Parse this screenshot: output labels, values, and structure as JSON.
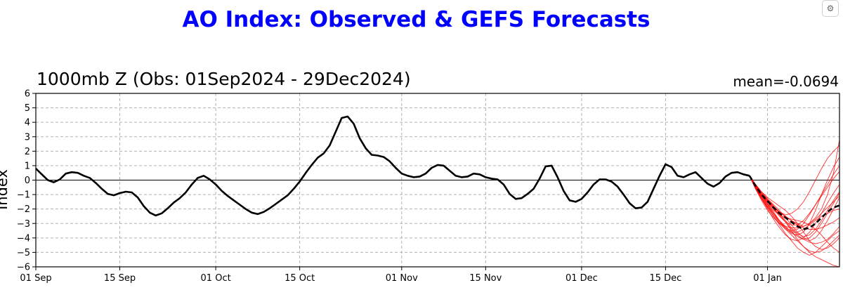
{
  "title": "AO Index: Observed & GEFS Forecasts",
  "subtitle": "1000mb Z (Obs: 01Sep2024 - 29Dec2024)",
  "mean_label": "mean=-0.0694",
  "ylabel": "Index",
  "icon": "settings-icon",
  "colors": {
    "title": "#0000ff",
    "observed": "#000000",
    "members": "#ff0000",
    "ensemble_mean": "#000000",
    "grid": "#b0b0b0"
  },
  "chart_data": {
    "type": "line",
    "title": "AO Index: Observed & GEFS Forecasts",
    "subtitle": "1000mb Z (Obs: 01Sep2024 - 29Dec2024)",
    "xlabel": "",
    "ylabel": "Index",
    "ylim": [
      -6,
      6
    ],
    "xlim": [
      "2024-09-01",
      "2025-01-13"
    ],
    "grid": true,
    "yticks": [
      -6,
      -5,
      -4,
      -3,
      -2,
      -1,
      0,
      1,
      2,
      3,
      4,
      5,
      6
    ],
    "xticks": [
      {
        "date": "2024-09-01",
        "label": "01 Sep"
      },
      {
        "date": "2024-09-15",
        "label": "15 Sep"
      },
      {
        "date": "2024-10-01",
        "label": "01 Oct"
      },
      {
        "date": "2024-10-15",
        "label": "15 Oct"
      },
      {
        "date": "2024-11-01",
        "label": "01 Nov"
      },
      {
        "date": "2024-11-15",
        "label": "15 Nov"
      },
      {
        "date": "2024-12-01",
        "label": "01 Dec"
      },
      {
        "date": "2024-12-15",
        "label": "15 Dec"
      },
      {
        "date": "2025-01-01",
        "label": "01 Jan"
      }
    ],
    "observed": [
      [
        "2024-09-01",
        0.8
      ],
      [
        "2024-09-02",
        0.4
      ],
      [
        "2024-09-03",
        0.0
      ],
      [
        "2024-09-04",
        -0.15
      ],
      [
        "2024-09-05",
        0.05
      ],
      [
        "2024-09-06",
        0.45
      ],
      [
        "2024-09-07",
        0.55
      ],
      [
        "2024-09-08",
        0.5
      ],
      [
        "2024-09-09",
        0.3
      ],
      [
        "2024-09-10",
        0.15
      ],
      [
        "2024-09-11",
        -0.2
      ],
      [
        "2024-09-12",
        -0.6
      ],
      [
        "2024-09-13",
        -0.95
      ],
      [
        "2024-09-14",
        -1.05
      ],
      [
        "2024-09-15",
        -0.9
      ],
      [
        "2024-09-16",
        -0.8
      ],
      [
        "2024-09-17",
        -0.85
      ],
      [
        "2024-09-18",
        -1.2
      ],
      [
        "2024-09-19",
        -1.8
      ],
      [
        "2024-09-20",
        -2.25
      ],
      [
        "2024-09-21",
        -2.45
      ],
      [
        "2024-09-22",
        -2.3
      ],
      [
        "2024-09-23",
        -1.95
      ],
      [
        "2024-09-24",
        -1.55
      ],
      [
        "2024-09-25",
        -1.25
      ],
      [
        "2024-09-26",
        -0.85
      ],
      [
        "2024-09-27",
        -0.3
      ],
      [
        "2024-09-28",
        0.15
      ],
      [
        "2024-09-29",
        0.3
      ],
      [
        "2024-09-30",
        0.05
      ],
      [
        "2024-10-01",
        -0.3
      ],
      [
        "2024-10-02",
        -0.75
      ],
      [
        "2024-10-03",
        -1.1
      ],
      [
        "2024-10-04",
        -1.4
      ],
      [
        "2024-10-05",
        -1.7
      ],
      [
        "2024-10-06",
        -2.0
      ],
      [
        "2024-10-07",
        -2.25
      ],
      [
        "2024-10-08",
        -2.35
      ],
      [
        "2024-10-09",
        -2.2
      ],
      [
        "2024-10-10",
        -1.95
      ],
      [
        "2024-10-11",
        -1.65
      ],
      [
        "2024-10-12",
        -1.35
      ],
      [
        "2024-10-13",
        -1.05
      ],
      [
        "2024-10-14",
        -0.6
      ],
      [
        "2024-10-15",
        -0.1
      ],
      [
        "2024-10-16",
        0.5
      ],
      [
        "2024-10-17",
        1.05
      ],
      [
        "2024-10-18",
        1.55
      ],
      [
        "2024-10-19",
        1.85
      ],
      [
        "2024-10-20",
        2.4
      ],
      [
        "2024-10-21",
        3.35
      ],
      [
        "2024-10-22",
        4.3
      ],
      [
        "2024-10-23",
        4.4
      ],
      [
        "2024-10-24",
        3.9
      ],
      [
        "2024-10-25",
        2.9
      ],
      [
        "2024-10-26",
        2.2
      ],
      [
        "2024-10-27",
        1.75
      ],
      [
        "2024-10-28",
        1.7
      ],
      [
        "2024-10-29",
        1.6
      ],
      [
        "2024-10-30",
        1.3
      ],
      [
        "2024-10-31",
        0.85
      ],
      [
        "2024-11-01",
        0.45
      ],
      [
        "2024-11-02",
        0.3
      ],
      [
        "2024-11-03",
        0.2
      ],
      [
        "2024-11-04",
        0.25
      ],
      [
        "2024-11-05",
        0.45
      ],
      [
        "2024-11-06",
        0.85
      ],
      [
        "2024-11-07",
        1.05
      ],
      [
        "2024-11-08",
        1.0
      ],
      [
        "2024-11-09",
        0.65
      ],
      [
        "2024-11-10",
        0.3
      ],
      [
        "2024-11-11",
        0.2
      ],
      [
        "2024-11-12",
        0.25
      ],
      [
        "2024-11-13",
        0.45
      ],
      [
        "2024-11-14",
        0.4
      ],
      [
        "2024-11-15",
        0.2
      ],
      [
        "2024-11-16",
        0.1
      ],
      [
        "2024-11-17",
        0.05
      ],
      [
        "2024-11-18",
        -0.3
      ],
      [
        "2024-11-19",
        -0.95
      ],
      [
        "2024-11-20",
        -1.3
      ],
      [
        "2024-11-21",
        -1.25
      ],
      [
        "2024-11-22",
        -0.95
      ],
      [
        "2024-11-23",
        -0.6
      ],
      [
        "2024-11-24",
        0.1
      ],
      [
        "2024-11-25",
        0.95
      ],
      [
        "2024-11-26",
        1.0
      ],
      [
        "2024-11-27",
        0.2
      ],
      [
        "2024-11-28",
        -0.75
      ],
      [
        "2024-11-29",
        -1.4
      ],
      [
        "2024-11-30",
        -1.5
      ],
      [
        "2024-12-01",
        -1.3
      ],
      [
        "2024-12-02",
        -0.85
      ],
      [
        "2024-12-03",
        -0.3
      ],
      [
        "2024-12-04",
        0.05
      ],
      [
        "2024-12-05",
        0.05
      ],
      [
        "2024-12-06",
        -0.1
      ],
      [
        "2024-12-07",
        -0.45
      ],
      [
        "2024-12-08",
        -1.0
      ],
      [
        "2024-12-09",
        -1.6
      ],
      [
        "2024-12-10",
        -1.95
      ],
      [
        "2024-12-11",
        -1.9
      ],
      [
        "2024-12-12",
        -1.5
      ],
      [
        "2024-12-13",
        -0.6
      ],
      [
        "2024-12-14",
        0.3
      ],
      [
        "2024-12-15",
        1.1
      ],
      [
        "2024-12-16",
        0.9
      ],
      [
        "2024-12-17",
        0.3
      ],
      [
        "2024-12-18",
        0.2
      ],
      [
        "2024-12-19",
        0.4
      ],
      [
        "2024-12-20",
        0.55
      ],
      [
        "2024-12-21",
        0.15
      ],
      [
        "2024-12-22",
        -0.25
      ],
      [
        "2024-12-23",
        -0.45
      ],
      [
        "2024-12-24",
        -0.2
      ],
      [
        "2024-12-25",
        0.25
      ],
      [
        "2024-12-26",
        0.5
      ],
      [
        "2024-12-27",
        0.55
      ],
      [
        "2024-12-28",
        0.4
      ],
      [
        "2024-12-29",
        0.3
      ]
    ],
    "ensemble_mean": [
      [
        "2024-12-29",
        0.3
      ],
      [
        "2024-12-30",
        -0.4
      ],
      [
        "2024-12-31",
        -1.0
      ],
      [
        "2025-01-01",
        -1.45
      ],
      [
        "2025-01-02",
        -1.9
      ],
      [
        "2025-01-03",
        -2.3
      ],
      [
        "2025-01-04",
        -2.6
      ],
      [
        "2025-01-05",
        -2.9
      ],
      [
        "2025-01-06",
        -3.2
      ],
      [
        "2025-01-07",
        -3.4
      ],
      [
        "2025-01-08",
        -3.3
      ],
      [
        "2025-01-09",
        -3.0
      ],
      [
        "2025-01-10",
        -2.6
      ],
      [
        "2025-01-11",
        -2.2
      ],
      [
        "2025-01-12",
        -1.9
      ],
      [
        "2025-01-13",
        -1.75
      ]
    ],
    "members": [
      [
        0.3,
        -0.3,
        -0.9,
        -1.4,
        -1.8,
        -2.2,
        -2.5,
        -2.8,
        -3.0,
        -3.2,
        -3.0,
        -2.6,
        -2.0,
        -1.0,
        0.5,
        2.8
      ],
      [
        0.3,
        -0.5,
        -1.1,
        -1.7,
        -2.3,
        -2.9,
        -3.4,
        -3.8,
        -4.2,
        -4.6,
        -5.0,
        -5.3,
        -5.5,
        -5.7,
        -5.9,
        -6.0
      ],
      [
        0.3,
        -0.4,
        -1.0,
        -1.5,
        -1.9,
        -2.2,
        -2.4,
        -2.3,
        -2.0,
        -1.5,
        -0.8,
        0.0,
        0.8,
        1.5,
        2.0,
        2.4
      ],
      [
        0.3,
        -0.6,
        -1.3,
        -1.9,
        -2.5,
        -3.1,
        -3.7,
        -4.2,
        -4.7,
        -5.0,
        -5.2,
        -5.0,
        -4.6,
        -4.2,
        -3.8,
        -3.5
      ],
      [
        0.3,
        -0.3,
        -0.8,
        -1.2,
        -1.5,
        -1.8,
        -2.1,
        -2.5,
        -3.0,
        -3.6,
        -4.2,
        -4.6,
        -4.8,
        -4.7,
        -4.4,
        -4.0
      ],
      [
        0.3,
        -0.5,
        -1.2,
        -1.8,
        -2.4,
        -2.9,
        -3.3,
        -3.5,
        -3.4,
        -3.0,
        -2.4,
        -1.7,
        -1.0,
        -0.3,
        0.4,
        1.0
      ],
      [
        0.3,
        -0.4,
        -0.9,
        -1.3,
        -1.7,
        -2.1,
        -2.6,
        -3.1,
        -3.6,
        -4.0,
        -4.2,
        -4.0,
        -3.5,
        -2.8,
        -2.0,
        -1.2
      ],
      [
        0.3,
        -0.6,
        -1.4,
        -2.1,
        -2.6,
        -3.0,
        -3.2,
        -3.3,
        -3.3,
        -3.2,
        -3.0,
        -2.7,
        -2.3,
        -1.9,
        -1.5,
        -1.1
      ],
      [
        0.3,
        -0.4,
        -1.0,
        -1.6,
        -2.2,
        -2.8,
        -3.3,
        -3.7,
        -3.8,
        -3.6,
        -3.0,
        -2.1,
        -1.0,
        0.0,
        0.9,
        1.6
      ],
      [
        0.3,
        -0.5,
        -1.1,
        -1.6,
        -2.0,
        -2.4,
        -2.9,
        -3.5,
        -4.1,
        -4.6,
        -4.9,
        -5.0,
        -4.9,
        -4.6,
        -4.2,
        -3.8
      ],
      [
        0.3,
        -0.3,
        -0.9,
        -1.5,
        -2.0,
        -2.5,
        -2.9,
        -3.1,
        -3.1,
        -2.8,
        -2.3,
        -1.7,
        -1.1,
        -0.5,
        0.1,
        0.6
      ],
      [
        0.3,
        -0.6,
        -1.2,
        -1.8,
        -2.3,
        -2.8,
        -3.2,
        -3.6,
        -3.9,
        -4.1,
        -4.0,
        -3.6,
        -3.0,
        -2.3,
        -1.6,
        -0.9
      ],
      [
        0.3,
        -0.4,
        -1.0,
        -1.4,
        -1.8,
        -2.2,
        -2.5,
        -2.8,
        -3.1,
        -3.3,
        -3.4,
        -3.4,
        -3.3,
        -3.1,
        -2.9,
        -2.6
      ],
      [
        0.3,
        -0.5,
        -1.3,
        -2.0,
        -2.7,
        -3.3,
        -3.8,
        -4.1,
        -4.2,
        -4.0,
        -3.6,
        -3.0,
        -2.3,
        -1.6,
        -0.9,
        -0.3
      ],
      [
        0.3,
        -0.4,
        -1.1,
        -1.7,
        -2.1,
        -2.4,
        -2.6,
        -2.7,
        -2.8,
        -2.9,
        -3.1,
        -3.4,
        -3.8,
        -4.3,
        -4.7,
        -5.0
      ],
      [
        0.3,
        -0.3,
        -0.8,
        -1.3,
        -1.8,
        -2.3,
        -2.8,
        -3.3,
        -3.7,
        -3.9,
        -3.8,
        -3.4,
        -2.8,
        -2.1,
        -1.4,
        -0.8
      ],
      [
        0.3,
        -0.5,
        -1.2,
        -1.9,
        -2.5,
        -3.0,
        -3.4,
        -3.6,
        -3.6,
        -3.4,
        -3.1,
        -2.8,
        -2.5,
        -2.3,
        -2.1,
        -2.0
      ],
      [
        0.3,
        -0.4,
        -0.9,
        -1.4,
        -1.9,
        -2.4,
        -2.9,
        -3.4,
        -3.8,
        -4.1,
        -4.3,
        -4.4,
        -4.3,
        -4.1,
        -3.7,
        -3.2
      ]
    ]
  }
}
